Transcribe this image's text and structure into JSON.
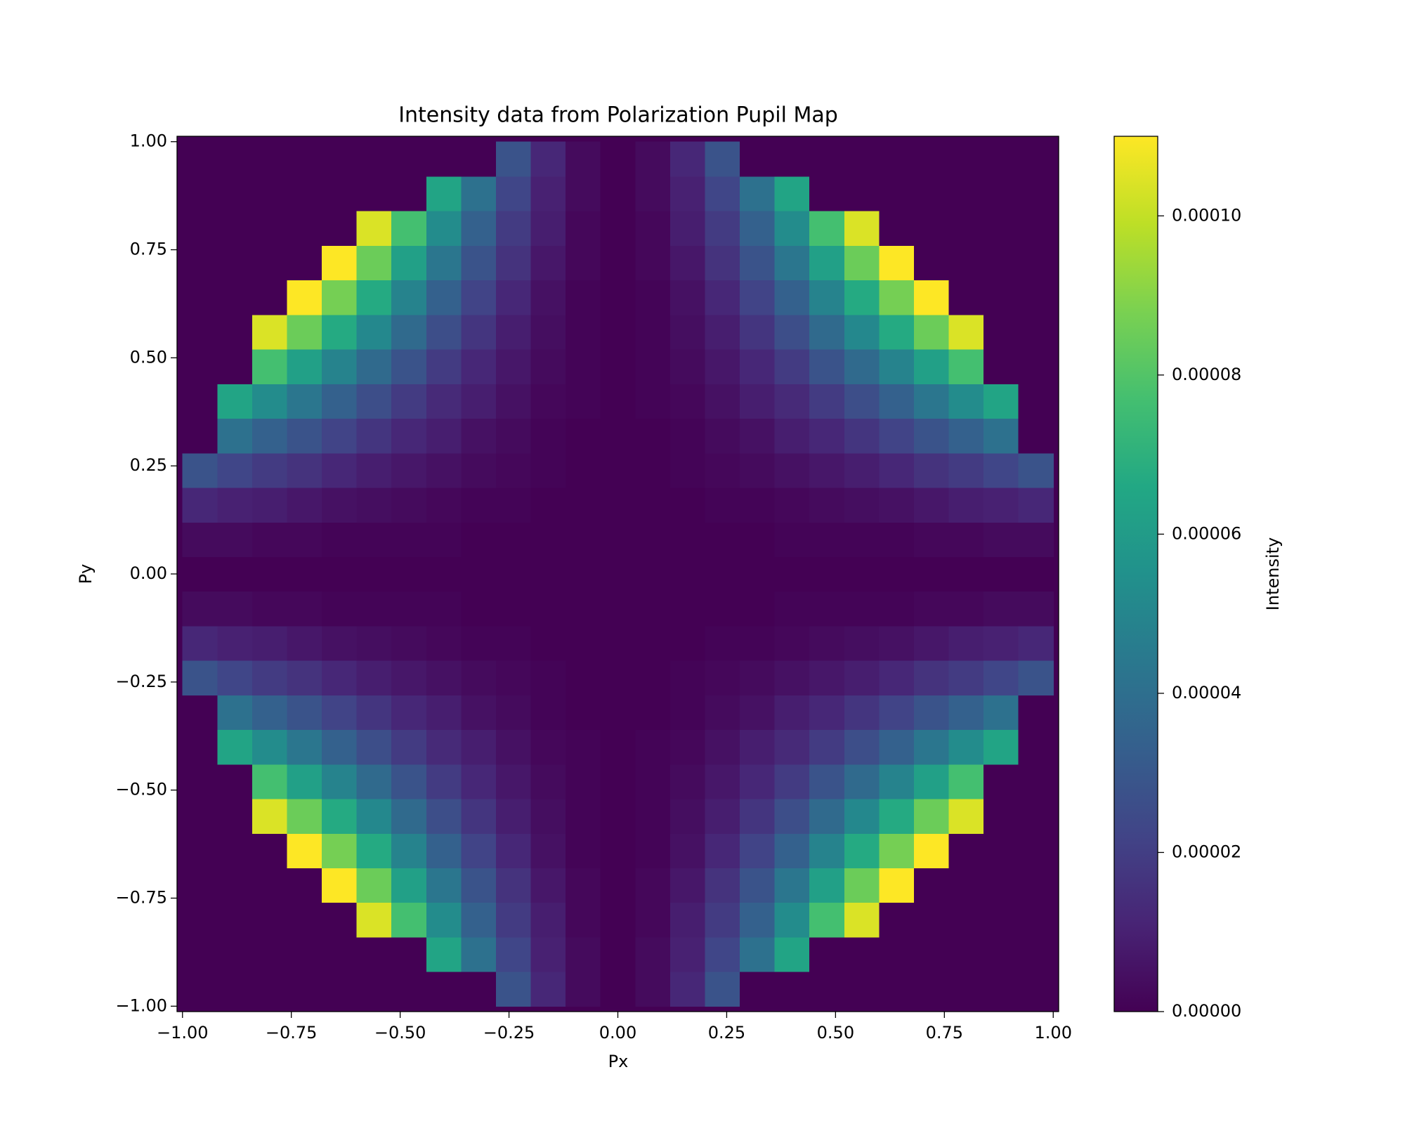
{
  "chart_data": {
    "type": "heatmap",
    "title": "Intensity data from Polarization Pupil Map",
    "x_label": "Px",
    "y_label": "Py",
    "colorbar_label": "Intensity",
    "colormap": "viridis",
    "x": [
      -0.96,
      -0.88,
      -0.8,
      -0.72,
      -0.64,
      -0.56,
      -0.48,
      -0.4,
      -0.32,
      -0.24,
      -0.16,
      -0.08,
      0,
      0.08,
      0.16,
      0.24,
      0.32,
      0.4,
      0.48,
      0.56,
      0.64,
      0.72,
      0.8,
      0.88,
      0.96
    ],
    "y": [
      -0.96,
      -0.88,
      -0.8,
      -0.72,
      -0.64,
      -0.56,
      -0.48,
      -0.4,
      -0.32,
      -0.24,
      -0.16,
      -0.08,
      0,
      0.08,
      0.16,
      0.24,
      0.32,
      0.4,
      0.48,
      0.56,
      0.64,
      0.72,
      0.8,
      0.88,
      0.96
    ],
    "z": [
      [
        0,
        0,
        0,
        0,
        0,
        0,
        0,
        0,
        0,
        2.8e-05,
        1.2e-05,
        3e-06,
        0,
        3e-06,
        1.2e-05,
        2.8e-05,
        0,
        0,
        0,
        0,
        0,
        0,
        0,
        0,
        0
      ],
      [
        0,
        0,
        0,
        0,
        0,
        0,
        0,
        6.4e-05,
        4.1e-05,
        2.3e-05,
        1e-05,
        3e-06,
        0,
        3e-06,
        1e-05,
        2.3e-05,
        4.1e-05,
        6.4e-05,
        0,
        0,
        0,
        0,
        0,
        0,
        0
      ],
      [
        0,
        0,
        0,
        0,
        0,
        0.000104,
        7.7e-05,
        5.3e-05,
        3.4e-05,
        1.9e-05,
        9e-06,
        2e-06,
        0,
        2e-06,
        9e-06,
        1.9e-05,
        3.4e-05,
        5.3e-05,
        7.7e-05,
        0.000104,
        0,
        0,
        0,
        0,
        0
      ],
      [
        0,
        0,
        0,
        0,
        0.00011,
        8.5e-05,
        6.2e-05,
        4.3e-05,
        2.8e-05,
        1.6e-05,
        7e-06,
        2e-06,
        0,
        2e-06,
        7e-06,
        1.6e-05,
        2.8e-05,
        4.3e-05,
        6.2e-05,
        8.5e-05,
        0.00011,
        0,
        0,
        0,
        0
      ],
      [
        0,
        0,
        0,
        0.00011,
        8.7e-05,
        6.7e-05,
        4.9e-05,
        3.4e-05,
        2.2e-05,
        1.2e-05,
        5e-06,
        1e-06,
        0,
        1e-06,
        5e-06,
        1.2e-05,
        2.2e-05,
        3.4e-05,
        4.9e-05,
        6.7e-05,
        8.7e-05,
        0.00011,
        0,
        0,
        0
      ],
      [
        0,
        0,
        0.000104,
        8.5e-05,
        6.7e-05,
        5.1e-05,
        3.8e-05,
        2.6e-05,
        1.7e-05,
        9e-06,
        4e-06,
        1e-06,
        0,
        1e-06,
        4e-06,
        9e-06,
        1.7e-05,
        2.6e-05,
        3.8e-05,
        5.1e-05,
        6.7e-05,
        8.5e-05,
        0.000104,
        0,
        0
      ],
      [
        0,
        0,
        7.7e-05,
        6.2e-05,
        4.9e-05,
        3.8e-05,
        2.8e-05,
        1.9e-05,
        1.2e-05,
        7e-06,
        3e-06,
        1e-06,
        0,
        1e-06,
        3e-06,
        7e-06,
        1.2e-05,
        1.9e-05,
        2.8e-05,
        3.8e-05,
        4.9e-05,
        6.2e-05,
        7.7e-05,
        0,
        0
      ],
      [
        0,
        6.4e-05,
        5.3e-05,
        4.3e-05,
        3.4e-05,
        2.6e-05,
        1.9e-05,
        1.3e-05,
        9e-06,
        5e-06,
        2e-06,
        1e-06,
        0,
        1e-06,
        2e-06,
        5e-06,
        9e-06,
        1.3e-05,
        1.9e-05,
        2.6e-05,
        3.4e-05,
        4.3e-05,
        5.3e-05,
        6.4e-05,
        0
      ],
      [
        0,
        4.1e-05,
        3.4e-05,
        2.8e-05,
        2.2e-05,
        1.7e-05,
        1.2e-05,
        9e-06,
        5e-06,
        3e-06,
        1e-06,
        0,
        0,
        0,
        1e-06,
        3e-06,
        5e-06,
        9e-06,
        1.2e-05,
        1.7e-05,
        2.2e-05,
        2.8e-05,
        3.4e-05,
        4.1e-05,
        0
      ],
      [
        2.8e-05,
        2.3e-05,
        1.9e-05,
        1.6e-05,
        1.2e-05,
        9e-06,
        7e-06,
        5e-06,
        3e-06,
        2e-06,
        1e-06,
        0,
        0,
        0,
        1e-06,
        2e-06,
        3e-06,
        5e-06,
        7e-06,
        9e-06,
        1.2e-05,
        1.6e-05,
        1.9e-05,
        2.3e-05,
        2.8e-05
      ],
      [
        1.2e-05,
        1e-05,
        9e-06,
        7e-06,
        5e-06,
        4e-06,
        3e-06,
        2e-06,
        1e-06,
        1e-06,
        0,
        0,
        0,
        0,
        0,
        1e-06,
        1e-06,
        2e-06,
        3e-06,
        4e-06,
        5e-06,
        7e-06,
        9e-06,
        1e-05,
        1.2e-05
      ],
      [
        3e-06,
        3e-06,
        2e-06,
        2e-06,
        1e-06,
        1e-06,
        1e-06,
        1e-06,
        0,
        0,
        0,
        0,
        0,
        0,
        0,
        0,
        0,
        1e-06,
        1e-06,
        1e-06,
        1e-06,
        2e-06,
        2e-06,
        3e-06,
        3e-06
      ],
      [
        0,
        0,
        0,
        0,
        0,
        0,
        0,
        0,
        0,
        0,
        0,
        0,
        0,
        0,
        0,
        0,
        0,
        0,
        0,
        0,
        0,
        0,
        0,
        0,
        0
      ],
      [
        3e-06,
        3e-06,
        2e-06,
        2e-06,
        1e-06,
        1e-06,
        1e-06,
        1e-06,
        0,
        0,
        0,
        0,
        0,
        0,
        0,
        0,
        0,
        1e-06,
        1e-06,
        1e-06,
        1e-06,
        2e-06,
        2e-06,
        3e-06,
        3e-06
      ],
      [
        1.2e-05,
        1e-05,
        9e-06,
        7e-06,
        5e-06,
        4e-06,
        3e-06,
        2e-06,
        1e-06,
        1e-06,
        0,
        0,
        0,
        0,
        0,
        1e-06,
        1e-06,
        2e-06,
        3e-06,
        4e-06,
        5e-06,
        7e-06,
        9e-06,
        1e-05,
        1.2e-05
      ],
      [
        2.8e-05,
        2.3e-05,
        1.9e-05,
        1.6e-05,
        1.2e-05,
        9e-06,
        7e-06,
        5e-06,
        3e-06,
        2e-06,
        1e-06,
        0,
        0,
        0,
        1e-06,
        2e-06,
        3e-06,
        5e-06,
        7e-06,
        9e-06,
        1.2e-05,
        1.6e-05,
        1.9e-05,
        2.3e-05,
        2.8e-05
      ],
      [
        0,
        4.1e-05,
        3.4e-05,
        2.8e-05,
        2.2e-05,
        1.7e-05,
        1.2e-05,
        9e-06,
        5e-06,
        3e-06,
        1e-06,
        0,
        0,
        0,
        1e-06,
        3e-06,
        5e-06,
        9e-06,
        1.2e-05,
        1.7e-05,
        2.2e-05,
        2.8e-05,
        3.4e-05,
        4.1e-05,
        0
      ],
      [
        0,
        6.4e-05,
        5.3e-05,
        4.3e-05,
        3.4e-05,
        2.6e-05,
        1.9e-05,
        1.3e-05,
        9e-06,
        5e-06,
        2e-06,
        1e-06,
        0,
        1e-06,
        2e-06,
        5e-06,
        9e-06,
        1.3e-05,
        1.9e-05,
        2.6e-05,
        3.4e-05,
        4.3e-05,
        5.3e-05,
        6.4e-05,
        0
      ],
      [
        0,
        0,
        7.7e-05,
        6.2e-05,
        4.9e-05,
        3.8e-05,
        2.8e-05,
        1.9e-05,
        1.2e-05,
        7e-06,
        3e-06,
        1e-06,
        0,
        1e-06,
        3e-06,
        7e-06,
        1.2e-05,
        1.9e-05,
        2.8e-05,
        3.8e-05,
        4.9e-05,
        6.2e-05,
        7.7e-05,
        0,
        0
      ],
      [
        0,
        0,
        0.000104,
        8.5e-05,
        6.7e-05,
        5.1e-05,
        3.8e-05,
        2.6e-05,
        1.7e-05,
        9e-06,
        4e-06,
        1e-06,
        0,
        1e-06,
        4e-06,
        9e-06,
        1.7e-05,
        2.6e-05,
        3.8e-05,
        5.1e-05,
        6.7e-05,
        8.5e-05,
        0.000104,
        0,
        0
      ],
      [
        0,
        0,
        0,
        0.00011,
        8.7e-05,
        6.7e-05,
        4.9e-05,
        3.4e-05,
        2.2e-05,
        1.2e-05,
        5e-06,
        1e-06,
        0,
        1e-06,
        5e-06,
        1.2e-05,
        2.2e-05,
        3.4e-05,
        4.9e-05,
        6.7e-05,
        8.7e-05,
        0.00011,
        0,
        0,
        0
      ],
      [
        0,
        0,
        0,
        0,
        0.00011,
        8.5e-05,
        6.2e-05,
        4.3e-05,
        2.8e-05,
        1.6e-05,
        7e-06,
        2e-06,
        0,
        2e-06,
        7e-06,
        1.6e-05,
        2.8e-05,
        4.3e-05,
        6.2e-05,
        8.5e-05,
        0.00011,
        0,
        0,
        0,
        0
      ],
      [
        0,
        0,
        0,
        0,
        0,
        0.000104,
        7.7e-05,
        5.3e-05,
        3.4e-05,
        1.9e-05,
        9e-06,
        2e-06,
        0,
        2e-06,
        9e-06,
        1.9e-05,
        3.4e-05,
        5.3e-05,
        7.7e-05,
        0.000104,
        0,
        0,
        0,
        0,
        0
      ],
      [
        0,
        0,
        0,
        0,
        0,
        0,
        0,
        6.4e-05,
        4.1e-05,
        2.3e-05,
        1e-05,
        3e-06,
        0,
        3e-06,
        1e-05,
        2.3e-05,
        4.1e-05,
        6.4e-05,
        0,
        0,
        0,
        0,
        0,
        0,
        0
      ],
      [
        0,
        0,
        0,
        0,
        0,
        0,
        0,
        0,
        0,
        2.8e-05,
        1.2e-05,
        3e-06,
        0,
        3e-06,
        1.2e-05,
        2.8e-05,
        0,
        0,
        0,
        0,
        0,
        0,
        0,
        0,
        0
      ]
    ],
    "xlim": [
      -1.0125,
      1.0125
    ],
    "ylim": [
      -1.0125,
      1.0125
    ],
    "xticks": [
      {
        "value": -1,
        "label": "−1.00"
      },
      {
        "value": -0.75,
        "label": "−0.75"
      },
      {
        "value": -0.5,
        "label": "−0.50"
      },
      {
        "value": -0.25,
        "label": "−0.25"
      },
      {
        "value": 0,
        "label": "0.00"
      },
      {
        "value": 0.25,
        "label": "0.25"
      },
      {
        "value": 0.5,
        "label": "0.50"
      },
      {
        "value": 0.75,
        "label": "0.75"
      },
      {
        "value": 1,
        "label": "1.00"
      }
    ],
    "yticks": [
      {
        "value": -1,
        "label": "−1.00"
      },
      {
        "value": -0.75,
        "label": "−0.75"
      },
      {
        "value": -0.5,
        "label": "−0.50"
      },
      {
        "value": -0.25,
        "label": "−0.25"
      },
      {
        "value": 0,
        "label": "0.00"
      },
      {
        "value": 0.25,
        "label": "0.25"
      },
      {
        "value": 0.5,
        "label": "0.50"
      },
      {
        "value": 0.75,
        "label": "0.75"
      },
      {
        "value": 1,
        "label": "1.00"
      }
    ],
    "zlim": [
      0,
      0.00011
    ],
    "zticks": [
      {
        "value": 0,
        "label": "0.00000"
      },
      {
        "value": 2e-05,
        "label": "0.00002"
      },
      {
        "value": 4e-05,
        "label": "0.00004"
      },
      {
        "value": 6e-05,
        "label": "0.00006"
      },
      {
        "value": 8e-05,
        "label": "0.00008"
      },
      {
        "value": 0.0001,
        "label": "0.00010"
      }
    ]
  }
}
